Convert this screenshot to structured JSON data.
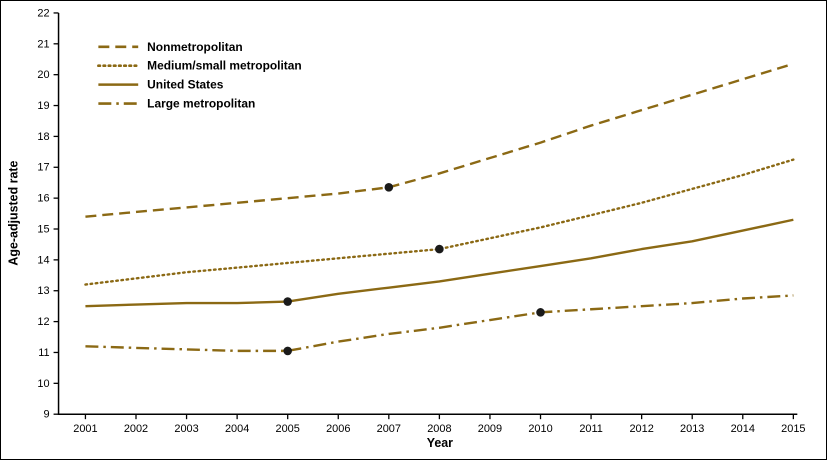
{
  "figure": {
    "background": "#ffffff",
    "border_color": "#000000",
    "axis_color": "#000000"
  },
  "chart_data": {
    "type": "line",
    "title": "",
    "xlabel": "Year",
    "ylabel": "Age-adjusted rate",
    "line_color": "#8B6914",
    "marker_color": "#1a1a1a",
    "grid": false,
    "legend_position": "top-left",
    "x": [
      2001,
      2002,
      2003,
      2004,
      2005,
      2006,
      2007,
      2008,
      2009,
      2010,
      2011,
      2012,
      2013,
      2014,
      2015
    ],
    "ylim": [
      9,
      22
    ],
    "yticks": [
      9,
      10,
      11,
      12,
      13,
      14,
      15,
      16,
      17,
      18,
      19,
      20,
      21,
      22
    ],
    "series": [
      {
        "name": "Nonmetropolitan",
        "style": "dashed",
        "values": [
          15.4,
          15.55,
          15.7,
          15.85,
          16.0,
          16.15,
          16.35,
          16.8,
          17.3,
          17.8,
          18.35,
          18.85,
          19.35,
          19.85,
          20.35
        ]
      },
      {
        "name": "Medium/small metropolitan",
        "style": "dotted",
        "values": [
          13.2,
          13.4,
          13.6,
          13.75,
          13.9,
          14.05,
          14.2,
          14.35,
          14.7,
          15.05,
          15.45,
          15.85,
          16.3,
          16.75,
          17.25
        ]
      },
      {
        "name": "United States",
        "style": "solid",
        "values": [
          12.5,
          12.55,
          12.6,
          12.6,
          12.65,
          12.9,
          13.1,
          13.3,
          13.55,
          13.8,
          14.05,
          14.35,
          14.6,
          14.95,
          15.3
        ]
      },
      {
        "name": "Large metropolitan",
        "style": "dashdot",
        "values": [
          11.2,
          11.15,
          11.1,
          11.05,
          11.05,
          11.35,
          11.6,
          11.8,
          12.05,
          12.3,
          12.4,
          12.5,
          12.6,
          12.75,
          12.85
        ]
      }
    ],
    "markers": [
      {
        "series": "Nonmetropolitan",
        "x": 2007,
        "y": 16.35
      },
      {
        "series": "Medium/small metropolitan",
        "x": 2008,
        "y": 14.35
      },
      {
        "series": "United States",
        "x": 2005,
        "y": 12.65
      },
      {
        "series": "Large metropolitan",
        "x": 2005,
        "y": 11.05
      },
      {
        "series": "Large metropolitan",
        "x": 2010,
        "y": 12.3
      }
    ]
  }
}
